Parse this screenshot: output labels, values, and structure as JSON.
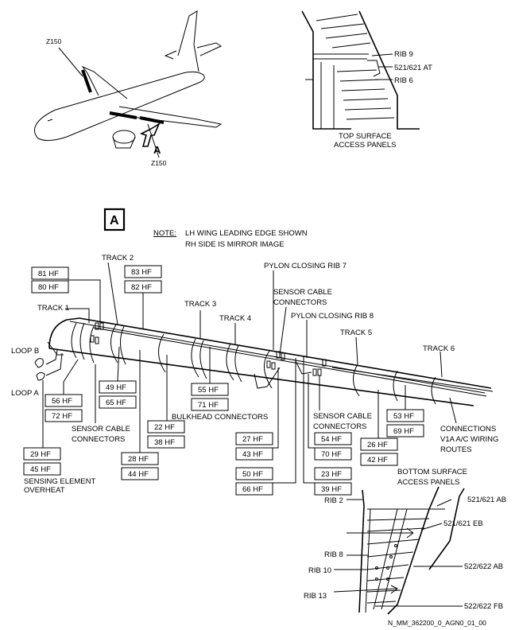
{
  "airplane": {
    "zone_top": "Z150",
    "zone_bottom": "Z150",
    "view_arrow": "A"
  },
  "top_detail": {
    "rib_9": "RIB 9",
    "panel_at": "521/621 AT",
    "rib_6": "RIB 6",
    "caption_line1": "TOP SURFACE",
    "caption_line2": "ACCESS PANELS"
  },
  "view_label": "A",
  "note": {
    "label": "NOTE:",
    "line1": "LH WING LEADING EDGE SHOWN",
    "line2": "RH SIDE IS MIRROR IMAGE"
  },
  "tracks": {
    "track1": "TRACK 1",
    "track2": "TRACK 2",
    "track3": "TRACK 3",
    "track4": "TRACK 4",
    "track5": "TRACK 5",
    "track6": "TRACK 6"
  },
  "labels": {
    "pylon_rib7": "PYLON CLOSING RIB 7",
    "pylon_rib8": "PYLON CLOSING RIB 8",
    "sensor_top_1": "SENSOR CABLE",
    "sensor_top_2": "CONNECTORS",
    "sensor_left_1": "SENSOR CABLE",
    "sensor_left_2": "CONNECTORS",
    "sensor_mid_1": "SENSOR CABLE",
    "sensor_mid_2": "CONNECTORS",
    "loop_b": "LOOP B",
    "loop_a": "LOOP A",
    "bulkhead": "BULKHEAD CONNECTORS",
    "sensing_1": "SENSING ELEMENT",
    "sensing_2": "OVERHEAT",
    "connections_1": "CONNECTIONS",
    "connections_2": "V1A A/C WIRING",
    "connections_3": "ROUTES"
  },
  "boxes": {
    "hf81": "81 HF",
    "hf80": "80 HF",
    "hf83": "83 HF",
    "hf82": "82 HF",
    "hf56": "56 HF",
    "hf72": "72 HF",
    "hf49": "49 HF",
    "hf65": "65 HF",
    "hf55": "55 HF",
    "hf71": "71 HF",
    "hf22": "22 HF",
    "hf38": "38 HF",
    "hf29": "29 HF",
    "hf45": "45 HF",
    "hf28": "28 HF",
    "hf44": "44 HF",
    "hf27": "27 HF",
    "hf43": "43 HF",
    "hf50": "50 HF",
    "hf66": "66 HF",
    "hf54": "54 HF",
    "hf70": "70 HF",
    "hf23": "23 HF",
    "hf39": "39 HF",
    "hf53": "53 HF",
    "hf69": "69 HF",
    "hf26": "26 HF",
    "hf42": "42 HF"
  },
  "bottom_detail": {
    "caption_line1": "BOTTOM SURFACE",
    "caption_line2": "ACCESS PANELS",
    "rib_2": "RIB 2",
    "rib_8": "RIB 8",
    "rib_10": "RIB 10",
    "rib_13": "RIB 13",
    "panel_ab_521": "521/621 AB",
    "panel_eb_521": "521/621 EB",
    "panel_ab_522": "522/622 AB",
    "panel_fb_522": "522/622 FB"
  },
  "figure_id": "N_MM_362200_0_AGN0_01_00"
}
